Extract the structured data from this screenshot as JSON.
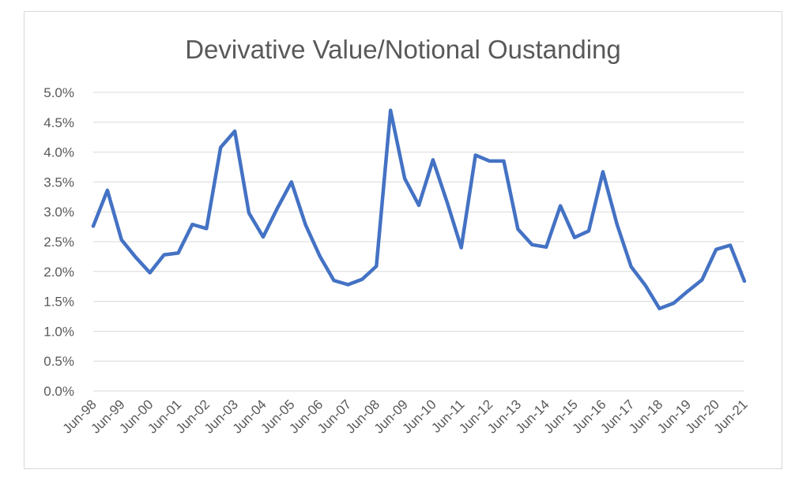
{
  "chart_data": {
    "type": "line",
    "title": "Devivative Value/Notional Oustanding",
    "xlabel": "",
    "ylabel": "",
    "ylim": [
      0,
      0.05
    ],
    "y_tick_values": [
      0,
      0.005,
      0.01,
      0.015,
      0.02,
      0.025,
      0.03,
      0.035,
      0.04,
      0.045,
      0.05
    ],
    "y_tick_labels": [
      "0.0%",
      "0.5%",
      "1.0%",
      "1.5%",
      "2.0%",
      "2.5%",
      "3.0%",
      "3.5%",
      "4.0%",
      "4.5%",
      "5.0%"
    ],
    "x_tick_labels": [
      "Jun-98",
      "Jun-99",
      "Jun-00",
      "Jun-01",
      "Jun-02",
      "Jun-03",
      "Jun-04",
      "Jun-05",
      "Jun-06",
      "Jun-07",
      "Jun-08",
      "Jun-09",
      "Jun-10",
      "Jun-11",
      "Jun-12",
      "Jun-13",
      "Jun-14",
      "Jun-15",
      "Jun-16",
      "Jun-17",
      "Jun-18",
      "Jun-19",
      "Jun-20",
      "Jun-21"
    ],
    "grid": true,
    "legend": "none",
    "series": [
      {
        "color": "#4472c4",
        "x": [
          "Jun-98",
          "Dec-98",
          "Jun-99",
          "Dec-99",
          "Jun-00",
          "Dec-00",
          "Jun-01",
          "Dec-01",
          "Jun-02",
          "Dec-02",
          "Jun-03",
          "Dec-03",
          "Jun-04",
          "Dec-04",
          "Jun-05",
          "Dec-05",
          "Jun-06",
          "Dec-06",
          "Jun-07",
          "Dec-07",
          "Jun-08",
          "Dec-08",
          "Jun-09",
          "Dec-09",
          "Jun-10",
          "Dec-10",
          "Jun-11",
          "Dec-11",
          "Jun-12",
          "Dec-12",
          "Jun-13",
          "Dec-13",
          "Jun-14",
          "Dec-14",
          "Jun-15",
          "Dec-15",
          "Jun-16",
          "Dec-16",
          "Jun-17",
          "Dec-17",
          "Jun-18",
          "Dec-18",
          "Jun-19",
          "Dec-19",
          "Jun-20",
          "Dec-20",
          "Jun-21"
        ],
        "values": [
          0.0276,
          0.0336,
          0.0253,
          0.0224,
          0.0198,
          0.0228,
          0.0231,
          0.0279,
          0.0272,
          0.0408,
          0.0435,
          0.0298,
          0.0258,
          0.0306,
          0.035,
          0.0278,
          0.0226,
          0.0185,
          0.0178,
          0.0187,
          0.0209,
          0.047,
          0.0356,
          0.0311,
          0.0387,
          0.0316,
          0.024,
          0.0395,
          0.0385,
          0.0385,
          0.0271,
          0.0245,
          0.0241,
          0.031,
          0.0257,
          0.0268,
          0.0367,
          0.0279,
          0.0208,
          0.0177,
          0.0138,
          0.0147,
          0.0167,
          0.0186,
          0.0237,
          0.0244,
          0.0184
        ]
      }
    ]
  }
}
